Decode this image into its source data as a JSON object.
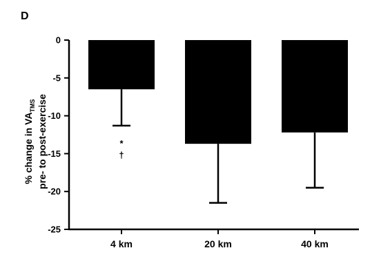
{
  "chart_data": {
    "type": "bar",
    "panel_label": "D",
    "ylabel_line1": "% change in VA",
    "ylabel_subscript": "TMS",
    "ylabel_line2": "pre- to post-exercise",
    "categories": [
      "4 km",
      "20 km",
      "40 km"
    ],
    "values": [
      -6.5,
      -13.7,
      -12.2
    ],
    "error_bars_lower": [
      -11.3,
      -21.5,
      -19.5
    ],
    "ylim": [
      -25,
      0
    ],
    "yticks": [
      0,
      -5,
      -10,
      -15,
      -20,
      -25
    ],
    "ytick_labels": [
      "0",
      "-5",
      "-10",
      "-15",
      "-20",
      "-25"
    ],
    "annotations": [
      {
        "category": "4 km",
        "lines": [
          "*",
          "†"
        ]
      }
    ],
    "bar_color": "#000000",
    "grid": false
  }
}
